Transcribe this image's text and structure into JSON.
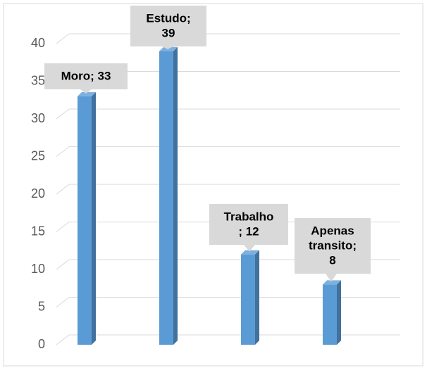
{
  "chart_data": {
    "type": "bar",
    "categories": [
      "Moro",
      "Estudo",
      "Trabalho",
      "Apenas transito"
    ],
    "values": [
      33,
      39,
      12,
      8
    ],
    "value_labels": [
      [
        "Moro; 33"
      ],
      [
        "Estudo;",
        "39"
      ],
      [
        "Trabalho",
        "; 12"
      ],
      [
        "Apenas",
        "transito;",
        "8"
      ]
    ],
    "color": "#5b9bd5",
    "ylim": [
      0,
      40
    ],
    "yticks": [
      0,
      5,
      10,
      15,
      20,
      25,
      30,
      35,
      40
    ],
    "grid": true
  }
}
